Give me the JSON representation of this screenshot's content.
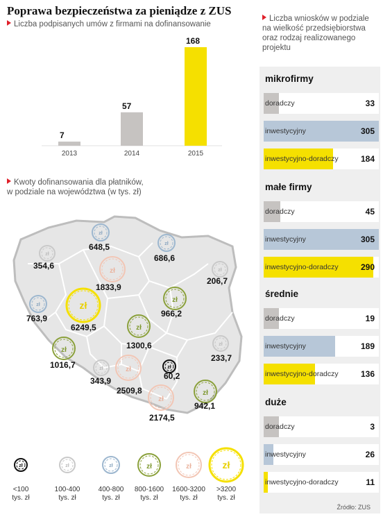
{
  "title": "Poprawa bezpieczeństwa za pieniądze z ZUS",
  "subtitle_left": "Liczba podpisanych umów z firmami na dofinansowanie",
  "subtitle_map_1": "Kwoty dofinansowania dla płatników,",
  "subtitle_map_2": "w podziale na województwa (w tys. zł)",
  "subtitle_right_1": "Liczba wniosków w podziale",
  "subtitle_right_2": "na wielkość przedsiębiorstwa",
  "subtitle_right_3": "oraz rodzaj realizowanego",
  "subtitle_right_4": "projektu",
  "source": "Źródło: ZUS",
  "colors": {
    "gray": "#c6c3c1",
    "yellow": "#f5e000",
    "blue": "#b7c7d8",
    "highlight": "#f5e000",
    "red_marker": "#e0202a",
    "map_fill": "#e6e6e6",
    "map_border": "#bdbdbd"
  },
  "chart_data": [
    {
      "type": "bar",
      "categories": [
        "2013",
        "2014",
        "2015"
      ],
      "values": [
        7,
        57,
        168
      ],
      "title": "Liczba podpisanych umów z firmami na dofinansowanie",
      "ylim": [
        0,
        168
      ]
    },
    {
      "type": "bar",
      "orientation": "horizontal",
      "title": "Liczba wniosków w podziale na wielkość przedsiębiorstwa oraz rodzaj realizowanego projektu",
      "groups": [
        {
          "name": "mikrofirmy",
          "items": [
            {
              "label": "doradczy",
              "value": 33
            },
            {
              "label": "inwestycyjny",
              "value": 305
            },
            {
              "label": "inwestycyjno-doradczy",
              "value": 184
            }
          ]
        },
        {
          "name": "małe firmy",
          "items": [
            {
              "label": "doradczy",
              "value": 45
            },
            {
              "label": "inwestycyjny",
              "value": 305
            },
            {
              "label": "inwestycyjno-doradczy",
              "value": 290
            }
          ]
        },
        {
          "name": "średnie",
          "items": [
            {
              "label": "doradczy",
              "value": 19
            },
            {
              "label": "inwestycyjny",
              "value": 189
            },
            {
              "label": "inwestycyjno-doradczy",
              "value": 136
            }
          ]
        },
        {
          "name": "duże",
          "items": [
            {
              "label": "doradczy",
              "value": 3
            },
            {
              "label": "inwestycyjny",
              "value": 26
            },
            {
              "label": "inwestycyjno-doradczy",
              "value": 11
            }
          ]
        }
      ],
      "xlim": [
        0,
        305
      ]
    },
    {
      "type": "map",
      "title": "Kwoty dofinansowania dla płatników, w podziale na województwa (w tys. zł)",
      "values": [
        "648,5",
        "354,6",
        "686,6",
        "1833,9",
        "206,7",
        "763,9",
        "6249,5",
        "966,2",
        "1300,6",
        "1016,7",
        "233,7",
        "343,9",
        "60,2",
        "2509,8",
        "942,1",
        "2174,5"
      ],
      "legend": [
        {
          "label_1": "<100",
          "label_2": "tys. zł",
          "class": "lt100"
        },
        {
          "label_1": "100-400",
          "label_2": "tys. zł",
          "class": "c100"
        },
        {
          "label_1": "400-800",
          "label_2": "tys. zł",
          "class": "c400"
        },
        {
          "label_1": "800-1600",
          "label_2": "tys. zł",
          "class": "c800"
        },
        {
          "label_1": "1600-3200",
          "label_2": "tys. zł",
          "class": "c1600"
        },
        {
          "label_1": ">3200",
          "label_2": "tys. zł",
          "class": "c3200"
        }
      ],
      "symbol": "zł"
    }
  ]
}
